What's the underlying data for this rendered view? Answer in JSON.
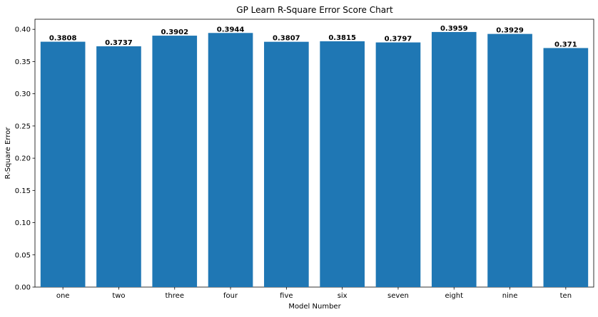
{
  "chart_data": {
    "type": "bar",
    "title": "GP Learn R-Square Error Score Chart",
    "xlabel": "Model Number",
    "ylabel": "R-Square Error",
    "categories": [
      "one",
      "two",
      "three",
      "four",
      "five",
      "six",
      "seven",
      "eight",
      "nine",
      "ten"
    ],
    "values": [
      0.3808,
      0.3737,
      0.3902,
      0.3944,
      0.3807,
      0.3815,
      0.3797,
      0.3959,
      0.3929,
      0.371
    ],
    "value_labels": [
      "0.3808",
      "0.3737",
      "0.3902",
      "0.3944",
      "0.3807",
      "0.3815",
      "0.3797",
      "0.3959",
      "0.3929",
      "0.371"
    ],
    "ylim": [
      0,
      0.4157
    ],
    "yticks": [
      0.0,
      0.05,
      0.1,
      0.15,
      0.2,
      0.25,
      0.3,
      0.35,
      0.4
    ],
    "ytick_labels": [
      "0.00",
      "0.05",
      "0.10",
      "0.15",
      "0.20",
      "0.25",
      "0.30",
      "0.35",
      "0.40"
    ],
    "bar_color": "#1f77b4",
    "grid": false,
    "legend": null
  }
}
